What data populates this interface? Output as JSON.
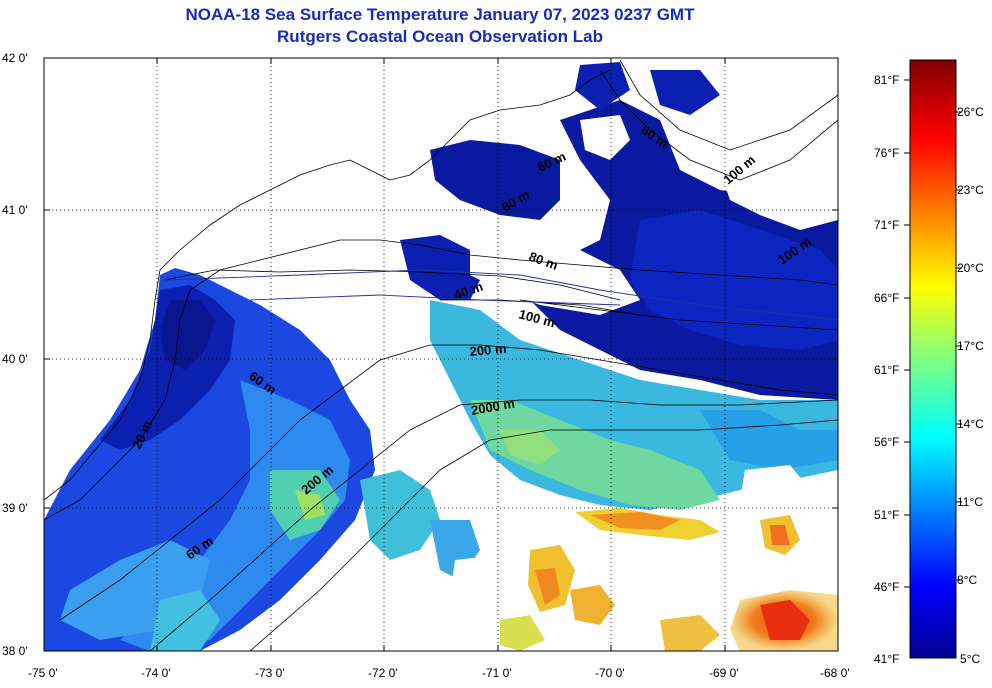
{
  "title": {
    "line1": "NOAA-18 Sea Surface Temperature January 07, 2023 0237 GMT",
    "line2": "Rutgers Coastal Ocean Observation Lab"
  },
  "map": {
    "lat_ticks": [
      "42 0'",
      "41 0'",
      "40 0'",
      "39 0'",
      "38 0'"
    ],
    "lon_ticks": [
      "-75 0'",
      "-74 0'",
      "-73 0'",
      "-72 0'",
      "-71 0'",
      "-70 0'",
      "-69 0'",
      "-68 0'"
    ],
    "lat_range": [
      38,
      42
    ],
    "lon_range": [
      -75,
      -68
    ],
    "depth_labels": [
      "60 m",
      "100 m",
      "60 m",
      "60 m",
      "100 m",
      "200 m",
      "60 m",
      "20 m",
      "200 m",
      "2000 m",
      "60 m",
      "100 m",
      "40 m",
      "80 m"
    ],
    "water_color": "#ffffff",
    "grid_style": "dotted"
  },
  "colorbar": {
    "fahrenheit_labels": [
      "81°F",
      "76°F",
      "71°F",
      "66°F",
      "61°F",
      "56°F",
      "51°F",
      "46°F",
      "41°F"
    ],
    "celsius_labels": [
      "26°C",
      "23°C",
      "20°C",
      "17°C",
      "14°C",
      "11°C",
      "8°C",
      "5°C"
    ],
    "colormap": "jet",
    "range_celsius": [
      5,
      27.2
    ]
  },
  "chart_data": {
    "type": "heatmap",
    "title": "NOAA-18 Sea Surface Temperature January 07, 2023 0237 GMT",
    "subtitle": "Rutgers Coastal Ocean Observation Lab",
    "x_range": [
      -75,
      -68
    ],
    "y_range": [
      38,
      42
    ],
    "units": "°C / °F",
    "color_range_c": [
      5,
      27.2
    ]
  }
}
